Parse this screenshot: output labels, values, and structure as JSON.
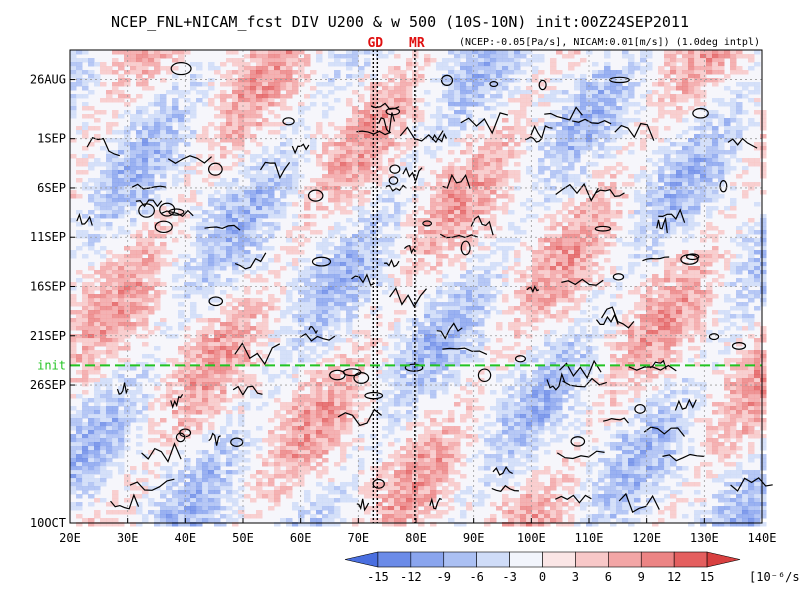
{
  "chart_data": {
    "type": "heatmap",
    "title": "NCEP_FNL+NICAM_fcst DIV U200 & w 500 (10S-10N) init:00Z24SEP2011",
    "subtitle": "(NCEP:-0.05[Pa/s], NICAM:0.01[m/s]) (1.0deg intpl)",
    "x_axis": {
      "range": [
        20,
        140
      ],
      "ticks": [
        20,
        30,
        40,
        50,
        60,
        70,
        80,
        90,
        100,
        110,
        120,
        130,
        140
      ],
      "tick_labels": [
        "20E",
        "30E",
        "40E",
        "50E",
        "60E",
        "70E",
        "80E",
        "90E",
        "100E",
        "110E",
        "120E",
        "130E",
        "140E"
      ]
    },
    "y_axis": {
      "range_days": [
        "2011-08-23",
        "2011-10-10"
      ],
      "ticks": [
        "2011-08-26",
        "2011-09-01",
        "2011-09-06",
        "2011-09-11",
        "2011-09-16",
        "2011-09-21",
        "2011-09-26",
        "2011-10-10"
      ],
      "tick_labels": [
        "26AUG",
        "1SEP",
        "6SEP",
        "11SEP",
        "16SEP",
        "21SEP",
        "26SEP",
        "10OCT"
      ],
      "reversed": true
    },
    "grid": true,
    "init_line": {
      "label": "init",
      "date": "2011-09-24",
      "color": "#22c422"
    },
    "site_markers": [
      {
        "label": "GD",
        "lon": 72.6,
        "color": "#e01010"
      },
      {
        "label": "MR",
        "lon": 79.8,
        "color": "#e01010"
      }
    ],
    "colorbar": {
      "levels": [
        -15,
        -12,
        -9,
        -6,
        -3,
        0,
        3,
        6,
        9,
        12,
        15
      ],
      "tick_labels": [
        "-15",
        "-12",
        "-9",
        "-6",
        "-3",
        "0",
        "3",
        "6",
        "9",
        "12",
        "15"
      ],
      "units": "[10⁻⁶/s]",
      "colors": [
        "#4a6fe0",
        "#6b8be8",
        "#8aa5ee",
        "#abc0f3",
        "#cfdcf8",
        "#f2f5fc",
        "#fbe6e6",
        "#f8c8c8",
        "#f3a6a6",
        "#ec8484",
        "#e45f5f",
        "#d84040"
      ]
    }
  }
}
